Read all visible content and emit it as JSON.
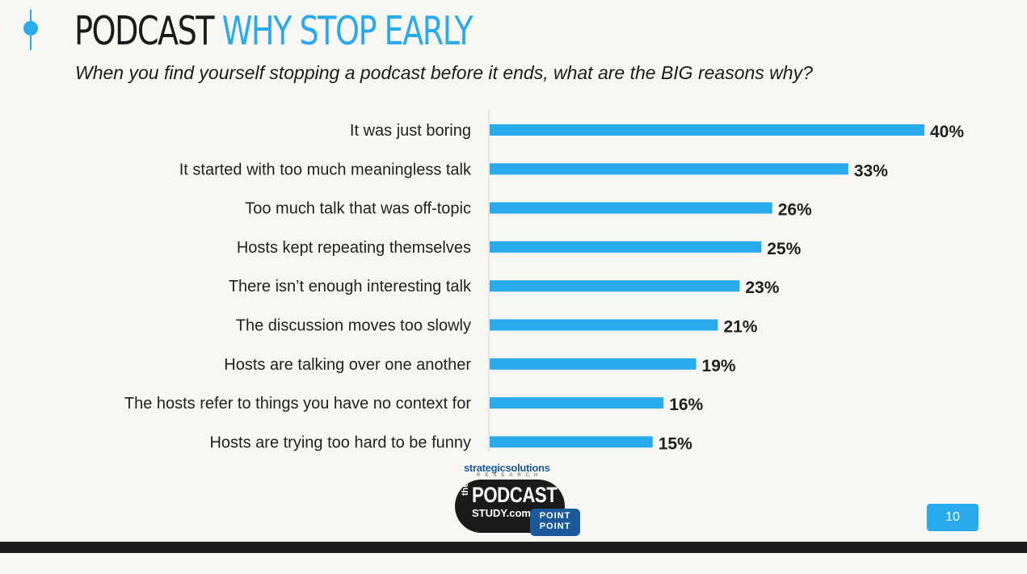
{
  "header": {
    "title_main": "PODCAST",
    "title_accent": "WHY STOP EARLY",
    "subtitle": "When you find yourself stopping a podcast before it ends, what are the BIG reasons why?"
  },
  "logo": {
    "strategic": "strategic",
    "solutions": "solutions",
    "research": "RESEARCH",
    "the": "the",
    "podcast": "PODCAST",
    "study": "STUDY.com",
    "point1": "POINT",
    "point2": "POINT"
  },
  "page_number": "10",
  "colors": {
    "accent": "#29aaec",
    "text": "#1f1f1f",
    "footer": "#1c1c1c"
  },
  "chart_data": {
    "type": "bar",
    "orientation": "horizontal",
    "categories": [
      "It was just boring",
      "It started with too much meaningless talk",
      "Too much talk that was off-topic",
      "Hosts kept repeating themselves",
      "There isn’t enough interesting talk",
      "The discussion moves too slowly",
      "Hosts are talking over one another",
      "The hosts refer to things you have no context for",
      "Hosts are trying too hard to be funny"
    ],
    "values": [
      40,
      33,
      26,
      25,
      23,
      21,
      19,
      16,
      15
    ],
    "value_labels": [
      "40%",
      "33%",
      "26%",
      "25%",
      "23%",
      "21%",
      "19%",
      "16%",
      "15%"
    ],
    "xlim": [
      0,
      40
    ],
    "grid": false,
    "bar_color": "#29aaec"
  }
}
